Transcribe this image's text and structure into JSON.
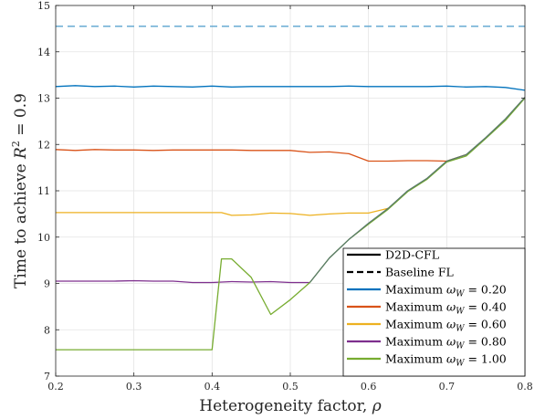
{
  "chart_data": {
    "type": "line",
    "title": "",
    "xlabel_text": "Heterogeneity factor, ",
    "xlabel_symbol": "ρ",
    "ylabel_text": "Time to achieve ",
    "ylabel_symbol": "R",
    "ylabel_exp": "2",
    "ylabel_tail": " = 0.9",
    "xlim": [
      0.2,
      0.8
    ],
    "ylim": [
      7,
      15
    ],
    "xticks": [
      "0.2",
      "0.3",
      "0.4",
      "0.5",
      "0.6",
      "0.7",
      "0.8"
    ],
    "yticks": [
      "7",
      "8",
      "9",
      "10",
      "11",
      "12",
      "13",
      "14",
      "15"
    ],
    "grid": true,
    "legend_position": "bottom-right",
    "legend": [
      {
        "label": "D2D-CFL",
        "style": "solid",
        "color": "#000000"
      },
      {
        "label": "Baseline FL",
        "style": "dashed",
        "color": "#000000"
      },
      {
        "label_text": "Maximum ",
        "label_symbol": "ω",
        "label_sub": "W",
        "label_value": " = 0.20",
        "style": "solid",
        "color": "#0072BD"
      },
      {
        "label_text": "Maximum ",
        "label_symbol": "ω",
        "label_sub": "W",
        "label_value": " = 0.40",
        "style": "solid",
        "color": "#D95319"
      },
      {
        "label_text": "Maximum ",
        "label_symbol": "ω",
        "label_sub": "W",
        "label_value": " = 0.60",
        "style": "solid",
        "color": "#EDB120"
      },
      {
        "label_text": "Maximum ",
        "label_symbol": "ω",
        "label_sub": "W",
        "label_value": " = 0.80",
        "style": "solid",
        "color": "#7E2F8E"
      },
      {
        "label_text": "Maximum ",
        "label_symbol": "ω",
        "label_sub": "W",
        "label_value": " = 1.00",
        "style": "solid",
        "color": "#77AC30"
      }
    ],
    "series": [
      {
        "name": "Baseline FL",
        "color": "#5BA4CF",
        "style": "dashed",
        "x": [
          0.2,
          0.8
        ],
        "y": [
          14.55,
          14.55
        ]
      },
      {
        "name": "Maximum ω_W = 0.20",
        "color": "#0072BD",
        "style": "solid",
        "x": [
          0.2,
          0.225,
          0.25,
          0.275,
          0.3,
          0.325,
          0.35,
          0.375,
          0.4,
          0.425,
          0.45,
          0.475,
          0.5,
          0.525,
          0.55,
          0.575,
          0.6,
          0.625,
          0.65,
          0.675,
          0.7,
          0.725,
          0.75,
          0.775,
          0.8
        ],
        "y": [
          13.25,
          13.27,
          13.25,
          13.26,
          13.24,
          13.26,
          13.25,
          13.24,
          13.26,
          13.24,
          13.25,
          13.25,
          13.25,
          13.25,
          13.25,
          13.26,
          13.25,
          13.25,
          13.25,
          13.25,
          13.26,
          13.24,
          13.25,
          13.23,
          13.17
        ]
      },
      {
        "name": "Maximum ω_W = 0.40",
        "color": "#D95319",
        "style": "solid",
        "x": [
          0.2,
          0.225,
          0.25,
          0.275,
          0.3,
          0.325,
          0.35,
          0.375,
          0.4,
          0.425,
          0.45,
          0.475,
          0.5,
          0.525,
          0.55,
          0.575,
          0.6,
          0.625,
          0.65,
          0.675,
          0.7,
          0.725
        ],
        "y": [
          11.89,
          11.87,
          11.89,
          11.88,
          11.88,
          11.87,
          11.88,
          11.88,
          11.88,
          11.88,
          11.87,
          11.87,
          11.87,
          11.83,
          11.84,
          11.8,
          11.64,
          11.64,
          11.65,
          11.65,
          11.64,
          11.78
        ]
      },
      {
        "name": "Maximum ω_W = 0.60",
        "color": "#EDB120",
        "style": "solid",
        "x": [
          0.2,
          0.225,
          0.25,
          0.275,
          0.3,
          0.325,
          0.35,
          0.375,
          0.4,
          0.412,
          0.425,
          0.45,
          0.475,
          0.5,
          0.525,
          0.55,
          0.575,
          0.6,
          0.625
        ],
        "y": [
          10.53,
          10.53,
          10.53,
          10.53,
          10.53,
          10.53,
          10.53,
          10.53,
          10.53,
          10.53,
          10.47,
          10.48,
          10.52,
          10.51,
          10.47,
          10.5,
          10.52,
          10.52,
          10.62
        ]
      },
      {
        "name": "Maximum ω_W = 0.80",
        "color": "#7E2F8E",
        "style": "solid",
        "x": [
          0.2,
          0.225,
          0.25,
          0.275,
          0.3,
          0.325,
          0.35,
          0.375,
          0.4,
          0.425,
          0.45,
          0.475,
          0.5,
          0.525
        ],
        "y": [
          9.05,
          9.05,
          9.05,
          9.05,
          9.06,
          9.05,
          9.05,
          9.02,
          9.02,
          9.04,
          9.03,
          9.04,
          9.02,
          9.02
        ]
      },
      {
        "name": "Maximum ω_W = 1.00",
        "color": "#77AC30",
        "style": "solid",
        "x": [
          0.2,
          0.225,
          0.25,
          0.275,
          0.3,
          0.325,
          0.35,
          0.375,
          0.4,
          0.412,
          0.425,
          0.45,
          0.475,
          0.5,
          0.525,
          0.55,
          0.575,
          0.6,
          0.625,
          0.65,
          0.675,
          0.7,
          0.725,
          0.75,
          0.775,
          0.8
        ],
        "y": [
          7.57,
          7.57,
          7.57,
          7.57,
          7.57,
          7.57,
          7.57,
          7.57,
          7.57,
          9.53,
          9.53,
          9.13,
          8.33,
          8.65,
          9.02,
          9.55,
          9.95,
          10.28,
          10.6,
          10.98,
          11.25,
          11.62,
          11.75,
          12.13,
          12.52,
          13.0
        ]
      },
      {
        "name": "D2D-CFL",
        "color": "#5A7A6A",
        "style": "solid",
        "x": [
          0.525,
          0.55,
          0.575,
          0.6,
          0.625,
          0.65,
          0.675,
          0.7,
          0.725,
          0.75,
          0.775,
          0.8
        ],
        "y": [
          9.02,
          9.55,
          9.95,
          10.3,
          10.62,
          11.0,
          11.27,
          11.64,
          11.78,
          12.15,
          12.55,
          13.02
        ]
      }
    ]
  }
}
